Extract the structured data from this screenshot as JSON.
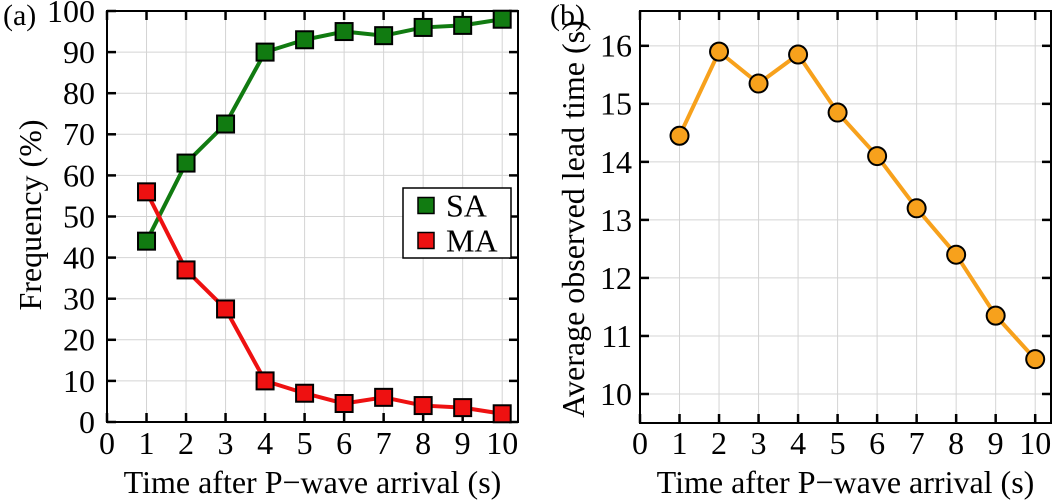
{
  "figure": {
    "background": "#ffffff",
    "text_color": "#000000",
    "grid_color": "#d4d4d4",
    "axis_color": "#000000"
  },
  "chart_data": [
    {
      "id": "a",
      "type": "line",
      "panel_label": "(a)",
      "xlabel": "Time after P−wave arrival (s)",
      "ylabel": "Frequency (%)",
      "xlim": [
        0,
        10.4
      ],
      "ylim": [
        0,
        100
      ],
      "xticks": [
        0,
        1,
        2,
        3,
        4,
        5,
        6,
        7,
        8,
        9,
        10
      ],
      "yticks": [
        0,
        10,
        20,
        30,
        40,
        50,
        60,
        70,
        80,
        90,
        100
      ],
      "grid": true,
      "legend": {
        "visible": true,
        "position": "inside-right"
      },
      "x": [
        1,
        2,
        3,
        4,
        5,
        6,
        7,
        8,
        9,
        10
      ],
      "series": [
        {
          "name": "SA",
          "color": "#117b11",
          "marker": "square",
          "values": [
            44,
            63,
            72.5,
            90,
            93,
            95,
            94,
            96,
            96.5,
            98
          ]
        },
        {
          "name": "MA",
          "color": "#ee1111",
          "marker": "square",
          "values": [
            56,
            37,
            27.5,
            10,
            7,
            4.5,
            6,
            4,
            3.5,
            2
          ]
        }
      ]
    },
    {
      "id": "b",
      "type": "line",
      "panel_label": "(b)",
      "xlabel": "Time after P−wave arrival (s)",
      "ylabel": "Average observed lead time (s)",
      "xlim": [
        0,
        10.4
      ],
      "ylim": [
        9.5,
        16.6
      ],
      "xticks": [
        0,
        1,
        2,
        3,
        4,
        5,
        6,
        7,
        8,
        9,
        10
      ],
      "yticks": [
        10,
        11,
        12,
        13,
        14,
        15,
        16
      ],
      "grid": true,
      "legend": {
        "visible": false
      },
      "x": [
        1,
        2,
        3,
        4,
        5,
        6,
        7,
        8,
        9,
        10
      ],
      "series": [
        {
          "name": "Average observed lead time",
          "color": "#f7a11c",
          "marker": "circle",
          "values": [
            14.45,
            15.9,
            15.35,
            15.85,
            14.85,
            14.1,
            13.2,
            12.4,
            11.35,
            10.6
          ]
        }
      ]
    }
  ]
}
